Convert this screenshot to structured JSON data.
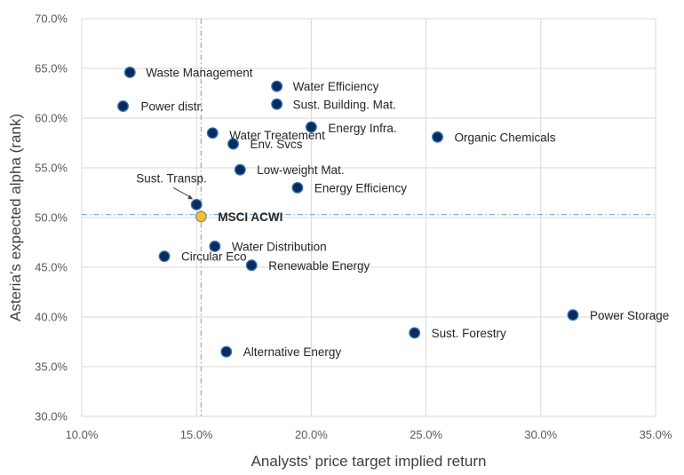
{
  "chart_data": {
    "type": "scatter",
    "xlabel": "Analysts’ price target implied return",
    "ylabel": "Asteria’s expected alpha (rank)",
    "xlim": [
      10.0,
      35.0
    ],
    "ylim": [
      30.0,
      70.0
    ],
    "x_ticks": [
      "10.0%",
      "15.0%",
      "20.0%",
      "25.0%",
      "30.0%",
      "35.0%"
    ],
    "y_ticks": [
      "30.0%",
      "35.0%",
      "40.0%",
      "45.0%",
      "50.0%",
      "55.0%",
      "60.0%",
      "65.0%",
      "70.0%"
    ],
    "grid": true,
    "colors": {
      "point": "#0d2a5e",
      "point_edge": "#2e75b6",
      "benchmark": "#f2c12e",
      "gridline": "#d9d9d9",
      "ref_line": "#7fb2d9"
    },
    "reference_lines": {
      "x": 15.2,
      "y": 50.3
    },
    "points": [
      {
        "label": "Waste Management",
        "x": 12.1,
        "y": 64.6
      },
      {
        "label": "Power distr.",
        "x": 11.8,
        "y": 61.2
      },
      {
        "label": "Water Efficiency",
        "x": 18.5,
        "y": 63.2
      },
      {
        "label": "Sust. Building. Mat.",
        "x": 18.5,
        "y": 61.4
      },
      {
        "label": "Energy Infra.",
        "x": 20.0,
        "y": 59.1
      },
      {
        "label": "Water Treatement",
        "x": 15.7,
        "y": 58.5
      },
      {
        "label": "Env. Svcs",
        "x": 16.6,
        "y": 57.4
      },
      {
        "label": "Organic Chemicals",
        "x": 25.5,
        "y": 58.1
      },
      {
        "label": "Low-weight Mat.",
        "x": 16.9,
        "y": 54.8
      },
      {
        "label": "Energy Efficiency",
        "x": 19.4,
        "y": 53.0
      },
      {
        "label": "Sust. Transp.",
        "x": 15.0,
        "y": 51.3
      },
      {
        "label": "Water Distribution",
        "x": 15.8,
        "y": 47.1
      },
      {
        "label": "Circular Eco",
        "x": 13.6,
        "y": 46.1
      },
      {
        "label": "Renewable Energy",
        "x": 17.4,
        "y": 45.2
      },
      {
        "label": "Power Storage",
        "x": 31.4,
        "y": 40.2
      },
      {
        "label": "Sust. Forestry",
        "x": 24.5,
        "y": 38.4
      },
      {
        "label": "Alternative Energy",
        "x": 16.3,
        "y": 36.5
      }
    ],
    "benchmark": {
      "label": "MSCI ACWI",
      "x": 15.2,
      "y": 50.1
    }
  }
}
